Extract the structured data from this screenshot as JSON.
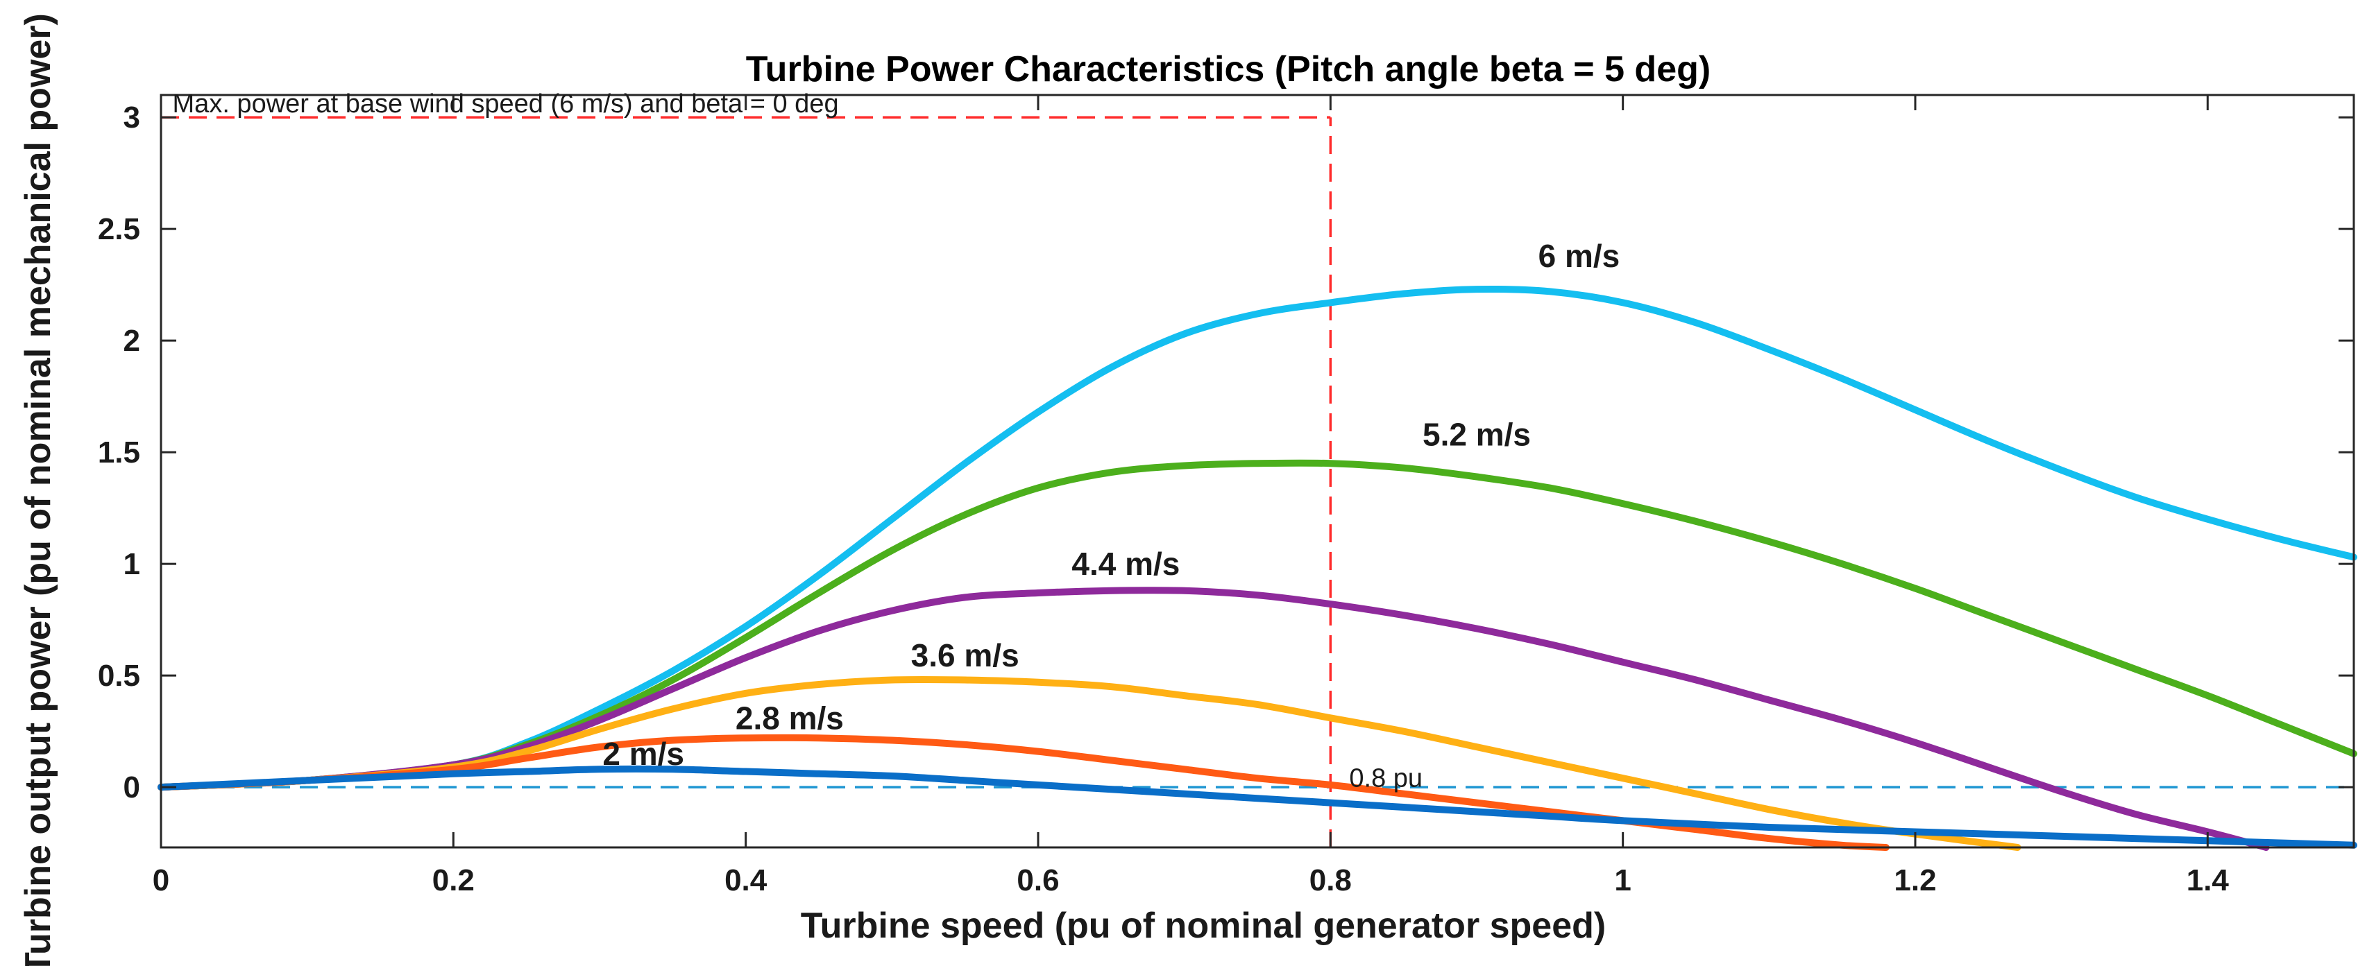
{
  "chart_data": {
    "type": "line",
    "title": "Turbine Power Characteristics (Pitch angle beta = 5 deg)",
    "xlabel": "Turbine speed (pu of nominal generator speed)",
    "ylabel": "Turbine output power (pu of nominal mechanical power)",
    "xlim": [
      0,
      1.5
    ],
    "ylim": [
      -0.27,
      3.1
    ],
    "xticks": [
      0,
      0.2,
      0.4,
      0.6,
      0.8,
      1,
      1.2,
      1.4
    ],
    "xtick_labels": [
      "0",
      "0.2",
      "0.4",
      "0.6",
      "0.8",
      "1",
      "1.2",
      "1.4"
    ],
    "yticks": [
      0,
      0.5,
      1,
      1.5,
      2,
      2.5,
      3
    ],
    "ytick_labels": [
      "0",
      "0.5",
      "1",
      "1.5",
      "2",
      "2.5",
      "3"
    ],
    "grid": false,
    "series": [
      {
        "name": "6 m/s",
        "color": "#14BEF0",
        "label_x": 0.97,
        "label_y": 2.33,
        "x": [
          0,
          0.1,
          0.2,
          0.25,
          0.3,
          0.35,
          0.4,
          0.45,
          0.5,
          0.55,
          0.6,
          0.65,
          0.7,
          0.75,
          0.8,
          0.85,
          0.9,
          0.95,
          1.0,
          1.05,
          1.1,
          1.15,
          1.2,
          1.25,
          1.3,
          1.35,
          1.4,
          1.45,
          1.5
        ],
        "y": [
          0,
          0.03,
          0.1,
          0.2,
          0.35,
          0.52,
          0.72,
          0.95,
          1.2,
          1.45,
          1.68,
          1.88,
          2.03,
          2.12,
          2.17,
          2.21,
          2.23,
          2.22,
          2.17,
          2.08,
          1.96,
          1.83,
          1.69,
          1.55,
          1.42,
          1.3,
          1.2,
          1.11,
          1.03
        ]
      },
      {
        "name": "5.2 m/s",
        "color": "#4CAF1C",
        "label_x": 0.9,
        "label_y": 1.53,
        "x": [
          0,
          0.1,
          0.2,
          0.25,
          0.3,
          0.35,
          0.4,
          0.45,
          0.5,
          0.55,
          0.6,
          0.65,
          0.7,
          0.75,
          0.8,
          0.85,
          0.9,
          0.95,
          1.0,
          1.05,
          1.1,
          1.15,
          1.2,
          1.25,
          1.3,
          1.35,
          1.4,
          1.45,
          1.5
        ],
        "y": [
          0,
          0.03,
          0.1,
          0.19,
          0.32,
          0.48,
          0.67,
          0.87,
          1.06,
          1.22,
          1.34,
          1.41,
          1.44,
          1.45,
          1.45,
          1.43,
          1.39,
          1.34,
          1.27,
          1.19,
          1.1,
          1.0,
          0.89,
          0.77,
          0.65,
          0.53,
          0.41,
          0.28,
          0.15
        ]
      },
      {
        "name": "4.4 m/s",
        "color": "#8E2A9B",
        "label_x": 0.66,
        "label_y": 0.95,
        "x": [
          0,
          0.1,
          0.2,
          0.25,
          0.3,
          0.35,
          0.4,
          0.45,
          0.5,
          0.55,
          0.6,
          0.65,
          0.7,
          0.75,
          0.8,
          0.85,
          0.9,
          0.95,
          1.0,
          1.05,
          1.1,
          1.15,
          1.2,
          1.25,
          1.3,
          1.35,
          1.4,
          1.44
        ],
        "y": [
          0,
          0.03,
          0.1,
          0.18,
          0.3,
          0.44,
          0.58,
          0.7,
          0.79,
          0.85,
          0.87,
          0.88,
          0.88,
          0.86,
          0.82,
          0.77,
          0.71,
          0.64,
          0.56,
          0.48,
          0.39,
          0.3,
          0.2,
          0.09,
          -0.02,
          -0.12,
          -0.2,
          -0.27
        ]
      },
      {
        "name": "3.6 m/s",
        "color": "#FFB014",
        "label_x": 0.55,
        "label_y": 0.54,
        "x": [
          0,
          0.1,
          0.2,
          0.25,
          0.3,
          0.35,
          0.4,
          0.45,
          0.5,
          0.55,
          0.6,
          0.65,
          0.7,
          0.75,
          0.8,
          0.85,
          0.9,
          0.95,
          1.0,
          1.05,
          1.1,
          1.15,
          1.2,
          1.27
        ],
        "y": [
          0,
          0.03,
          0.09,
          0.16,
          0.26,
          0.35,
          0.42,
          0.46,
          0.48,
          0.48,
          0.47,
          0.45,
          0.41,
          0.37,
          0.31,
          0.25,
          0.18,
          0.11,
          0.04,
          -0.03,
          -0.1,
          -0.16,
          -0.21,
          -0.27
        ]
      },
      {
        "name": "2.8 m/s",
        "color": "#FF5A14",
        "label_x": 0.43,
        "label_y": 0.26,
        "x": [
          0,
          0.1,
          0.2,
          0.25,
          0.3,
          0.35,
          0.4,
          0.45,
          0.5,
          0.55,
          0.6,
          0.65,
          0.7,
          0.75,
          0.8,
          0.85,
          0.9,
          0.95,
          1.0,
          1.05,
          1.1,
          1.15,
          1.18
        ],
        "y": [
          0,
          0.03,
          0.08,
          0.13,
          0.18,
          0.21,
          0.22,
          0.22,
          0.21,
          0.19,
          0.16,
          0.12,
          0.08,
          0.04,
          0.01,
          -0.03,
          -0.07,
          -0.11,
          -0.15,
          -0.19,
          -0.23,
          -0.26,
          -0.27
        ]
      },
      {
        "name": "2 m/s",
        "color": "#0A6EC8",
        "label_x": 0.33,
        "label_y": 0.1,
        "x": [
          0,
          0.1,
          0.2,
          0.25,
          0.3,
          0.35,
          0.4,
          0.45,
          0.5,
          0.55,
          0.6,
          0.65,
          0.7,
          0.75,
          0.8,
          0.85,
          0.9,
          0.95,
          1.0,
          1.1,
          1.2,
          1.3,
          1.4,
          1.5
        ],
        "y": [
          0,
          0.03,
          0.06,
          0.07,
          0.08,
          0.08,
          0.07,
          0.06,
          0.05,
          0.03,
          0.01,
          -0.01,
          -0.03,
          -0.05,
          -0.07,
          -0.09,
          -0.11,
          -0.13,
          -0.15,
          -0.18,
          -0.2,
          -0.22,
          -0.24,
          -0.26
        ]
      }
    ],
    "reference_lines": [
      {
        "name": "max-power-line",
        "orientation": "horizontal",
        "value": 3,
        "from": 0,
        "to": 0.8,
        "color": "#FF2A2A",
        "style": "dashed"
      },
      {
        "name": "speed-0-8-line",
        "orientation": "vertical",
        "value": 0.8,
        "from": -0.27,
        "to": 3,
        "color": "#FF2A2A",
        "style": "dashed"
      },
      {
        "name": "zero-power-line",
        "orientation": "horizontal",
        "value": 0,
        "from": 0,
        "to": 1.5,
        "color": "#1E96D2",
        "style": "dashed"
      }
    ],
    "annotations": [
      {
        "name": "max-power-annotation",
        "text": "Max. power at base wind speed (6 m/s) and beta = 0 deg",
        "x": 0.005,
        "y": 3.01
      },
      {
        "name": "pu-annotation",
        "text": "0.8 pu",
        "x": 0.81,
        "y": 0.02
      }
    ]
  }
}
